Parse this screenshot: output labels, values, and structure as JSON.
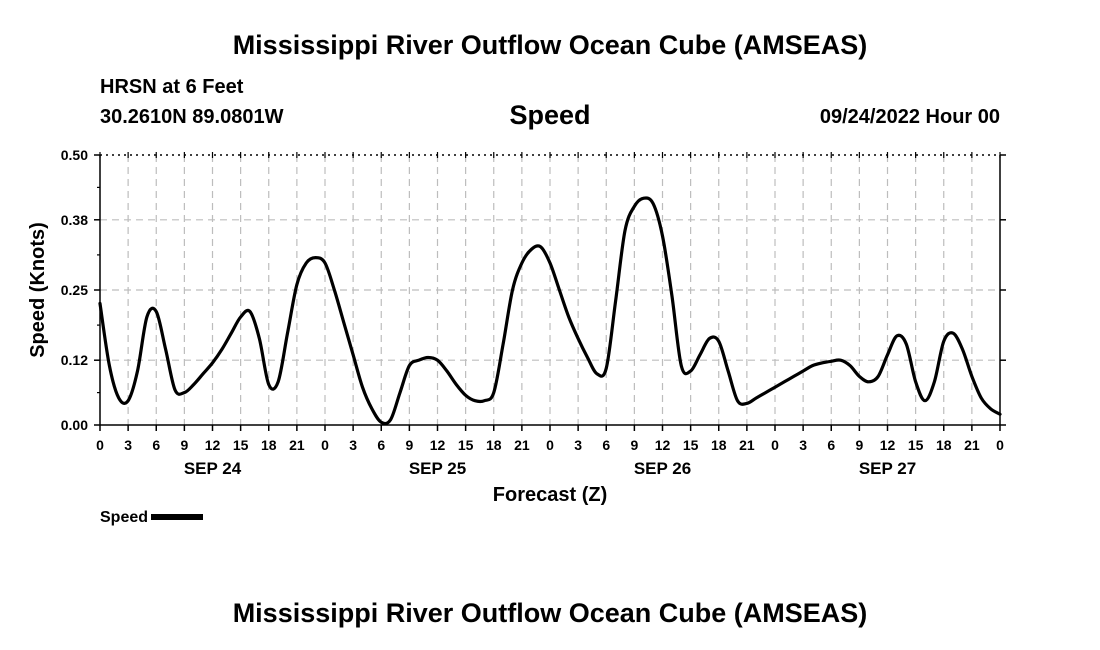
{
  "header": {
    "title": "Mississippi River Outflow Ocean Cube (AMSEAS)",
    "station": "HRSN at 6 Feet",
    "coordinates": "30.2610N  89.0801W",
    "chart_title": "Speed",
    "date": "09/24/2022 Hour 00"
  },
  "footer": {
    "title": "Mississippi River Outflow Ocean Cube (AMSEAS)"
  },
  "legend": {
    "label": "Speed"
  },
  "chart_data": {
    "type": "line",
    "title": "Speed",
    "xlabel": "Forecast (Z)",
    "ylabel": "Speed (Knots)",
    "xlim": [
      0,
      96
    ],
    "ylim": [
      0,
      0.5
    ],
    "y_ticks": [
      0.0,
      0.12,
      0.25,
      0.38,
      0.5
    ],
    "y_tick_labels": [
      "0.00",
      "0.12",
      "0.25",
      "0.38",
      "0.50"
    ],
    "x_ticks": [
      0,
      3,
      6,
      9,
      12,
      15,
      18,
      21,
      24,
      27,
      30,
      33,
      36,
      39,
      42,
      45,
      48,
      51,
      54,
      57,
      60,
      63,
      66,
      69,
      72,
      75,
      78,
      81,
      84,
      87,
      90,
      93,
      96
    ],
    "x_tick_labels": [
      "0",
      "3",
      "6",
      "9",
      "12",
      "15",
      "18",
      "21",
      "0",
      "3",
      "6",
      "9",
      "12",
      "15",
      "18",
      "21",
      "0",
      "3",
      "6",
      "9",
      "12",
      "15",
      "18",
      "21",
      "0",
      "3",
      "6",
      "9",
      "12",
      "15",
      "18",
      "21",
      "0"
    ],
    "day_labels": [
      {
        "x": 12,
        "label": "SEP 24"
      },
      {
        "x": 36,
        "label": "SEP 25"
      },
      {
        "x": 60,
        "label": "SEP 26"
      },
      {
        "x": 84,
        "label": "SEP 27"
      }
    ],
    "grid": true,
    "series": [
      {
        "name": "Speed",
        "color": "#000000",
        "x": [
          0,
          1,
          2,
          3,
          4,
          5,
          6,
          7,
          8,
          9,
          10,
          11,
          12,
          13,
          14,
          15,
          16,
          17,
          18,
          19,
          20,
          21,
          22,
          23,
          24,
          25,
          26,
          27,
          28,
          29,
          30,
          31,
          32,
          33,
          34,
          35,
          36,
          37,
          38,
          39,
          40,
          41,
          42,
          43,
          44,
          45,
          46,
          47,
          48,
          49,
          50,
          51,
          52,
          53,
          54,
          55,
          56,
          57,
          58,
          59,
          60,
          61,
          62,
          63,
          64,
          65,
          66,
          67,
          68,
          69,
          70,
          71,
          72,
          73,
          74,
          75,
          76,
          77,
          78,
          79,
          80,
          81,
          82,
          83,
          84,
          85,
          86,
          87,
          88,
          89,
          90,
          91,
          92,
          93,
          94,
          95,
          96
        ],
        "values": [
          0.225,
          0.11,
          0.05,
          0.045,
          0.1,
          0.2,
          0.21,
          0.14,
          0.065,
          0.06,
          0.075,
          0.095,
          0.115,
          0.14,
          0.17,
          0.2,
          0.21,
          0.16,
          0.075,
          0.08,
          0.17,
          0.26,
          0.3,
          0.31,
          0.3,
          0.25,
          0.19,
          0.13,
          0.07,
          0.03,
          0.005,
          0.01,
          0.06,
          0.11,
          0.12,
          0.125,
          0.12,
          0.1,
          0.075,
          0.055,
          0.045,
          0.045,
          0.06,
          0.15,
          0.25,
          0.3,
          0.325,
          0.33,
          0.3,
          0.25,
          0.2,
          0.16,
          0.125,
          0.095,
          0.105,
          0.23,
          0.36,
          0.405,
          0.42,
          0.41,
          0.35,
          0.24,
          0.11,
          0.1,
          0.13,
          0.16,
          0.155,
          0.1,
          0.045,
          0.04,
          0.05,
          0.06,
          0.07,
          0.08,
          0.09,
          0.1,
          0.11,
          0.115,
          0.118,
          0.12,
          0.11,
          0.09,
          0.08,
          0.09,
          0.13,
          0.165,
          0.15,
          0.08,
          0.045,
          0.08,
          0.155,
          0.17,
          0.14,
          0.09,
          0.05,
          0.03,
          0.02
        ]
      }
    ]
  }
}
